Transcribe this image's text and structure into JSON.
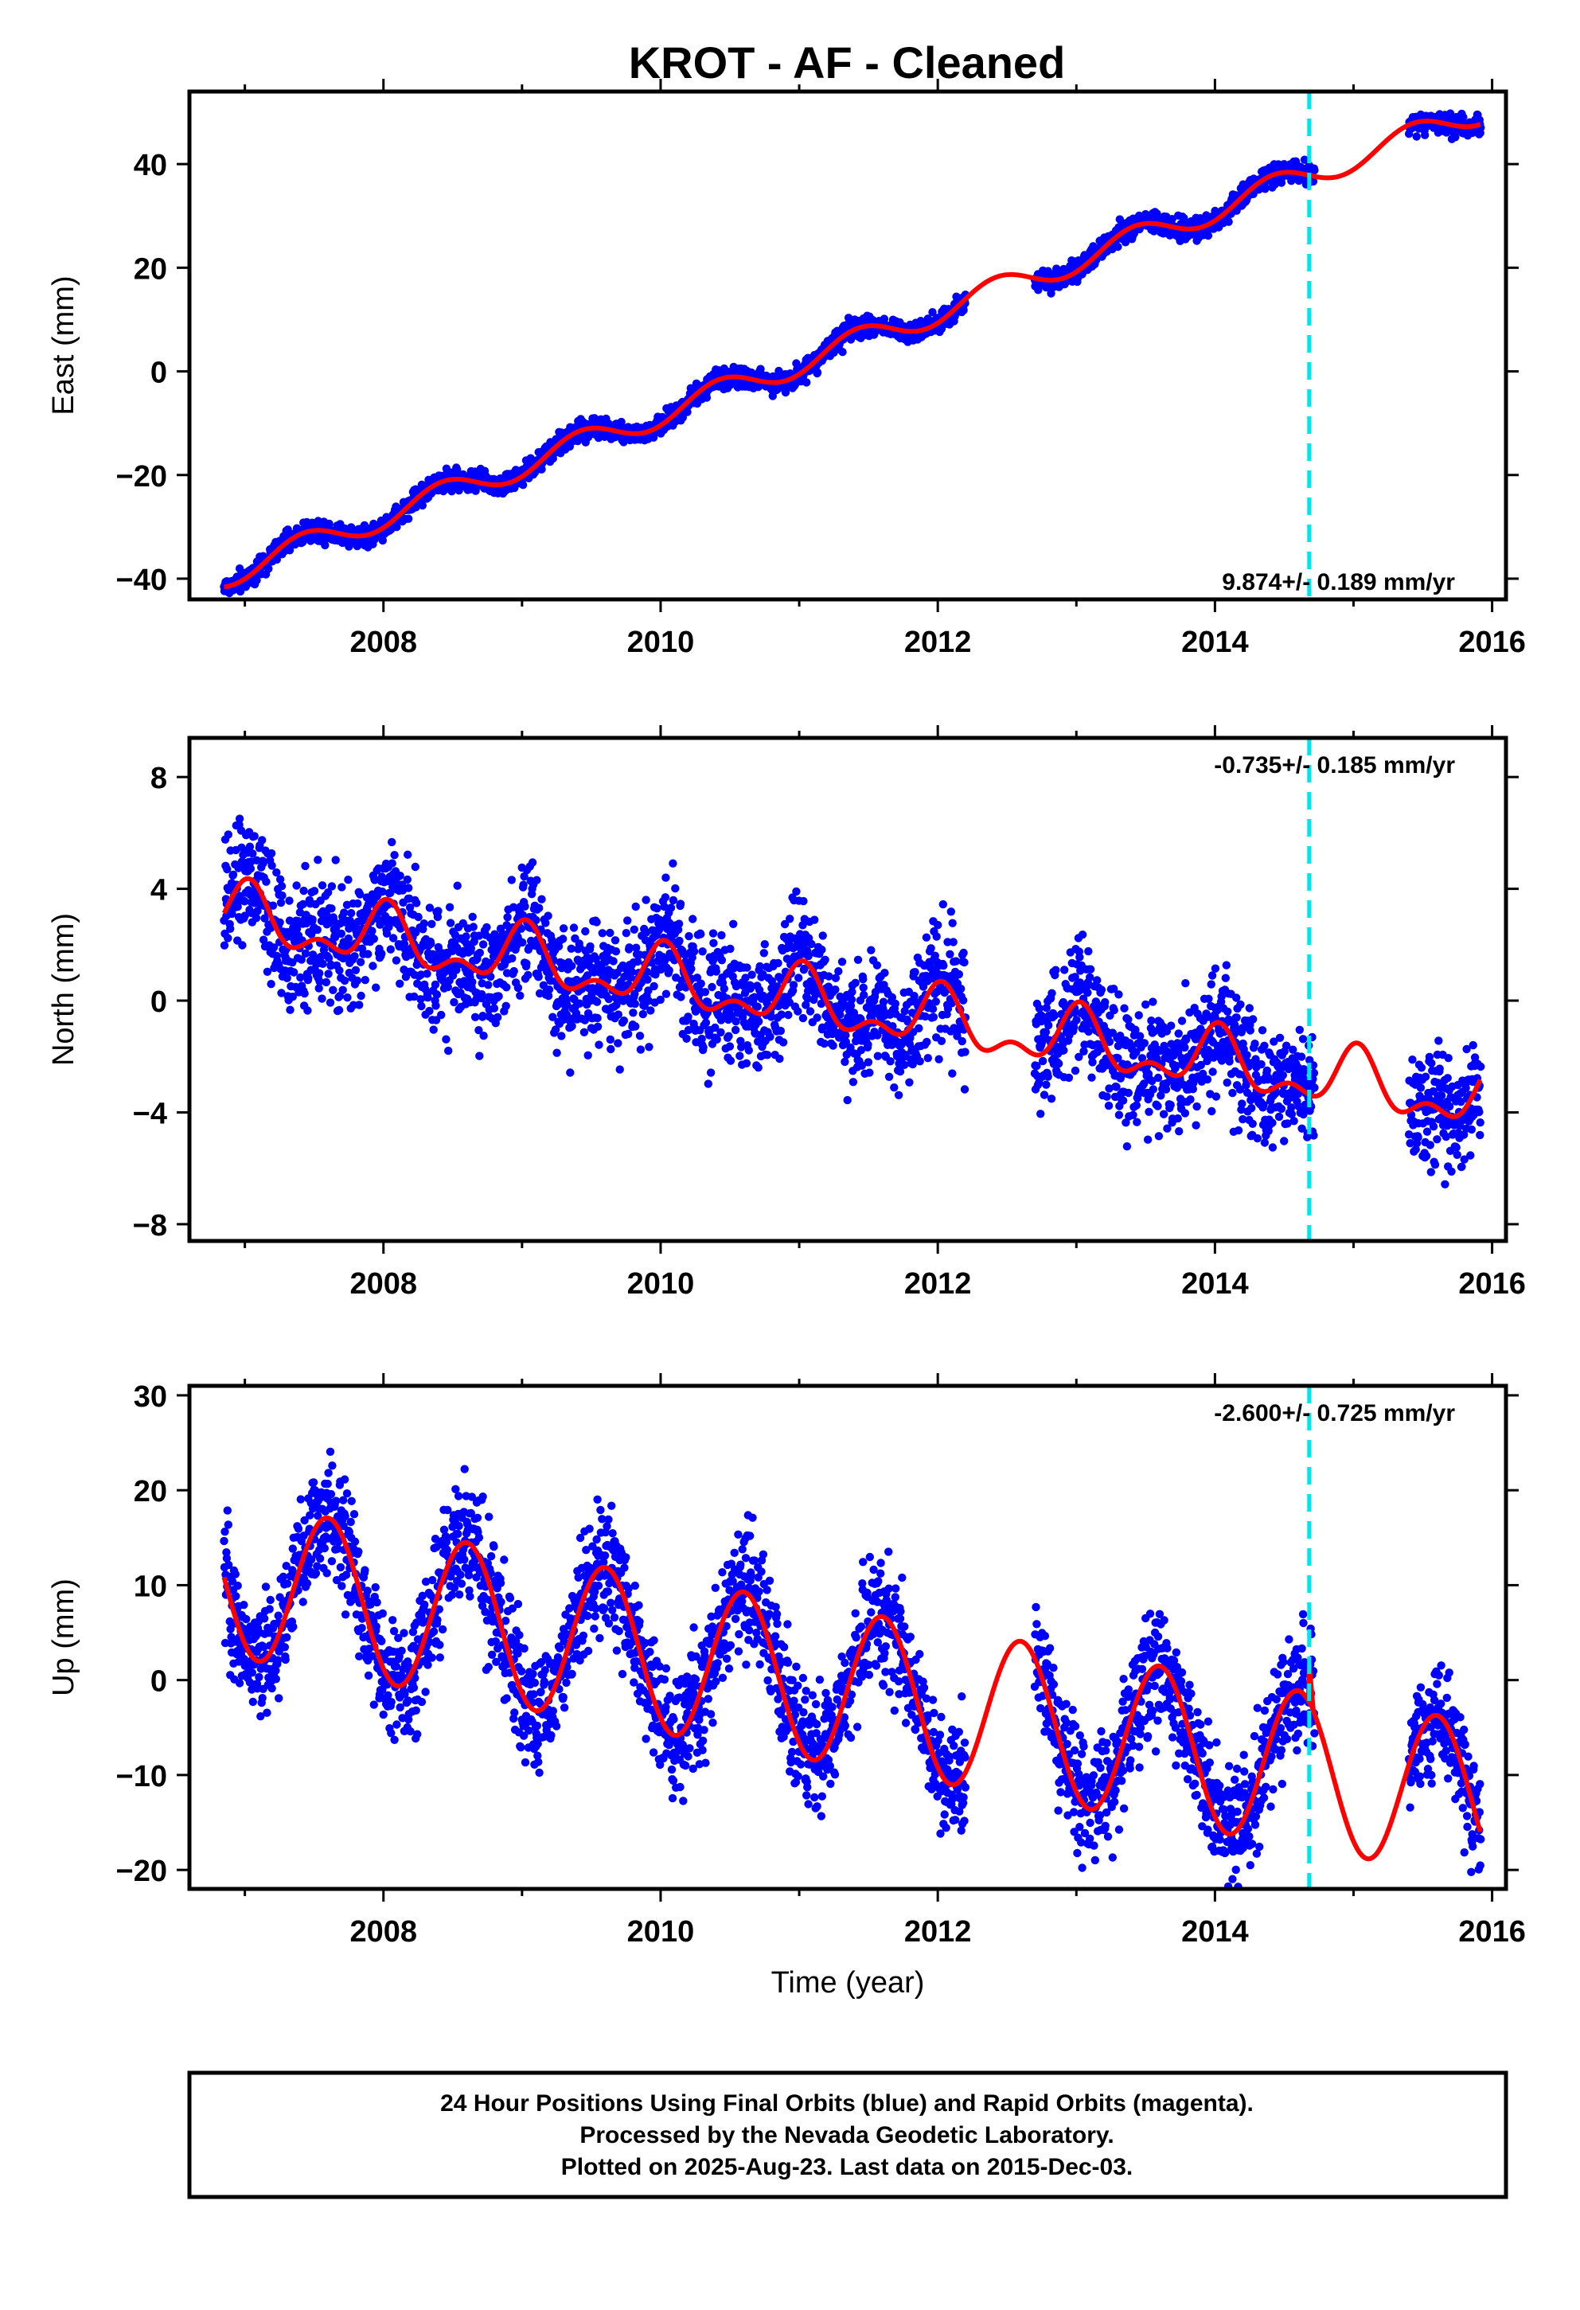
{
  "title": "KROT  - AF - Cleaned",
  "footer": {
    "lines": [
      "24 Hour Positions Using Final Orbits (blue) and Rapid Orbits (magenta).",
      "Processed by the Nevada Geodetic Laboratory.",
      "Plotted on 2025-Aug-23. Last data on 2015-Dec-03."
    ]
  },
  "colors": {
    "points": "#0000ff",
    "model": "#ff0000",
    "break_line": "#00e5ee",
    "frame": "#000000"
  },
  "chart_data": [
    {
      "type": "scatter",
      "name": "east",
      "ylabel": "East (mm)",
      "xlabel": "",
      "xlim": [
        2006.6,
        2016.1
      ],
      "ylim": [
        -44,
        54
      ],
      "xticks": [
        "2008",
        "2010",
        "2012",
        "2014",
        "2016"
      ],
      "yticks": [
        "−40",
        "−20",
        "0",
        "20",
        "40"
      ],
      "ytick_values": [
        -40,
        -20,
        0,
        20,
        40
      ],
      "rate_label": "9.874+/- 0.189 mm/yr",
      "break_epochs": [
        2014.68
      ],
      "model": {
        "ref_year": 2011.4,
        "offset": 5.6,
        "trend": 9.874,
        "annual_amp": 2.5,
        "annual_phase_year": 0.42,
        "semiannual_amp": 0,
        "semiannual_phase_year": 0,
        "step_at_break": 0
      },
      "data_segments": [
        [
          2006.85,
          2012.2
        ],
        [
          2012.7,
          2014.72
        ],
        [
          2015.4,
          2015.92
        ]
      ],
      "noise_mm": 1.0
    },
    {
      "type": "scatter",
      "name": "north",
      "ylabel": "North (mm)",
      "xlabel": "",
      "xlim": [
        2006.6,
        2016.1
      ],
      "ylim": [
        -8.6,
        9.4
      ],
      "xticks": [
        "2008",
        "2010",
        "2012",
        "2014",
        "2016"
      ],
      "yticks": [
        "−8",
        "−4",
        "0",
        "4",
        "8"
      ],
      "ytick_values": [
        -8,
        -4,
        0,
        4,
        8
      ],
      "rate_label": "-0.735+/- 0.185 mm/yr",
      "break_epochs": [
        2014.68
      ],
      "model": {
        "ref_year": 2011.4,
        "offset": -0.3,
        "trend": -0.735,
        "annual_amp": 0.9,
        "annual_phase_year": 0.02,
        "semiannual_amp": 0.55,
        "semiannual_phase_year": 0.03,
        "step_at_break": 0
      },
      "data_segments": [
        [
          2006.85,
          2012.2
        ],
        [
          2012.7,
          2014.72
        ],
        [
          2015.4,
          2015.92
        ]
      ],
      "noise_mm": 1.1
    },
    {
      "type": "scatter",
      "name": "up",
      "ylabel": "Up (mm)",
      "xlabel": "Time (year)",
      "xlim": [
        2006.6,
        2016.1
      ],
      "ylim": [
        -22,
        31
      ],
      "xticks": [
        "2008",
        "2010",
        "2012",
        "2014",
        "2016"
      ],
      "yticks": [
        "−20",
        "−10",
        "0",
        "10",
        "20",
        "30"
      ],
      "ytick_values": [
        -20,
        -10,
        0,
        10,
        20,
        30
      ],
      "rate_label": "-2.600+/- 0.725 mm/yr",
      "break_epochs": [
        2014.68
      ],
      "model": {
        "ref_year": 2011.4,
        "offset": -1.0,
        "trend": -2.6,
        "annual_amp": 8.2,
        "annual_phase_year": 0.6,
        "semiannual_amp": 0,
        "semiannual_phase_year": 0,
        "step_at_break": 4
      },
      "data_segments": [
        [
          2006.85,
          2012.2
        ],
        [
          2012.7,
          2014.72
        ],
        [
          2015.4,
          2015.92
        ]
      ],
      "noise_mm": 3.2
    }
  ]
}
